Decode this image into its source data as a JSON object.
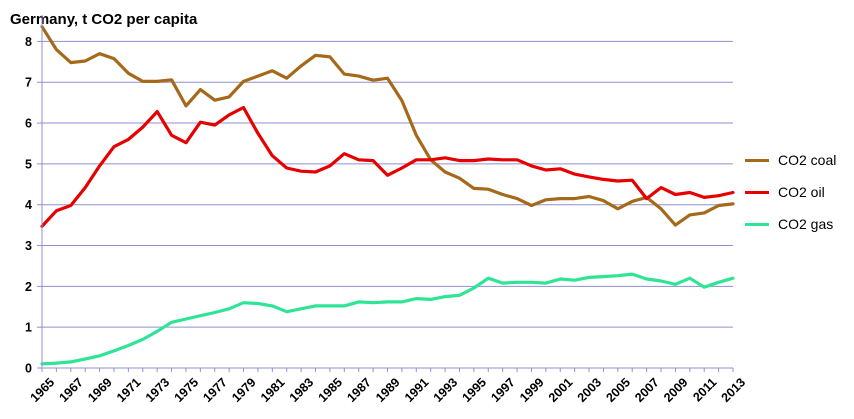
{
  "chart_data": {
    "type": "line",
    "title": "Germany, t CO2 per capita",
    "xlabel": "",
    "ylabel": "",
    "ylim": [
      0,
      8.5
    ],
    "yticks": [
      "0",
      "1",
      "2",
      "3",
      "4",
      "5",
      "6",
      "7",
      "8"
    ],
    "xticks": [
      "1965",
      "1967",
      "1969",
      "1971",
      "1973",
      "1975",
      "1977",
      "1979",
      "1981",
      "1983",
      "1985",
      "1987",
      "1989",
      "1991",
      "1993",
      "1995",
      "1997",
      "1999",
      "2001",
      "2003",
      "2005",
      "2007",
      "2009",
      "2011",
      "2013"
    ],
    "x": [
      1965,
      1966,
      1967,
      1968,
      1969,
      1970,
      1971,
      1972,
      1973,
      1974,
      1975,
      1976,
      1977,
      1978,
      1979,
      1980,
      1981,
      1982,
      1983,
      1984,
      1985,
      1986,
      1987,
      1988,
      1989,
      1990,
      1991,
      1992,
      1993,
      1994,
      1995,
      1996,
      1997,
      1998,
      1999,
      2000,
      2001,
      2002,
      2003,
      2004,
      2005,
      2006,
      2007,
      2008,
      2009,
      2010,
      2011,
      2012,
      2013
    ],
    "grid": "horizontal",
    "legend_position": "right",
    "series": [
      {
        "name": "CO2 coal",
        "color": "#a5691a",
        "values": [
          8.36,
          7.8,
          7.48,
          7.52,
          7.7,
          7.58,
          7.22,
          7.02,
          7.02,
          7.06,
          6.42,
          6.82,
          6.56,
          6.64,
          7.02,
          7.15,
          7.28,
          7.1,
          7.4,
          7.66,
          7.62,
          7.2,
          7.15,
          7.05,
          7.1,
          6.55,
          5.7,
          5.1,
          4.8,
          4.65,
          4.4,
          4.38,
          4.25,
          4.15,
          3.98,
          4.12,
          4.15,
          4.15,
          4.2,
          4.1,
          3.9,
          4.08,
          4.18,
          3.9,
          3.5,
          3.75,
          3.8,
          3.98,
          4.02
        ]
      },
      {
        "name": "CO2 oil",
        "color": "#e60000",
        "values": [
          3.47,
          3.85,
          3.98,
          4.42,
          4.95,
          5.42,
          5.6,
          5.9,
          6.28,
          5.7,
          5.52,
          6.02,
          5.95,
          6.2,
          6.38,
          5.75,
          5.2,
          4.9,
          4.82,
          4.8,
          4.95,
          5.25,
          5.1,
          5.08,
          4.72,
          4.9,
          5.1,
          5.1,
          5.15,
          5.08,
          5.08,
          5.12,
          5.1,
          5.1,
          4.95,
          4.85,
          4.88,
          4.75,
          4.68,
          4.62,
          4.58,
          4.6,
          4.15,
          4.42,
          4.25,
          4.3,
          4.18,
          4.22,
          4.3
        ]
      },
      {
        "name": "CO2 gas",
        "color": "#2ee596",
        "values": [
          0.1,
          0.12,
          0.15,
          0.22,
          0.3,
          0.42,
          0.55,
          0.7,
          0.9,
          1.12,
          1.2,
          1.28,
          1.36,
          1.45,
          1.6,
          1.58,
          1.52,
          1.38,
          1.45,
          1.52,
          1.52,
          1.52,
          1.62,
          1.6,
          1.62,
          1.62,
          1.7,
          1.68,
          1.75,
          1.78,
          1.96,
          2.2,
          2.08,
          2.1,
          2.1,
          2.08,
          2.18,
          2.15,
          2.22,
          2.24,
          2.26,
          2.3,
          2.18,
          2.13,
          2.05,
          2.2,
          1.98,
          2.1,
          2.2
        ]
      }
    ]
  }
}
